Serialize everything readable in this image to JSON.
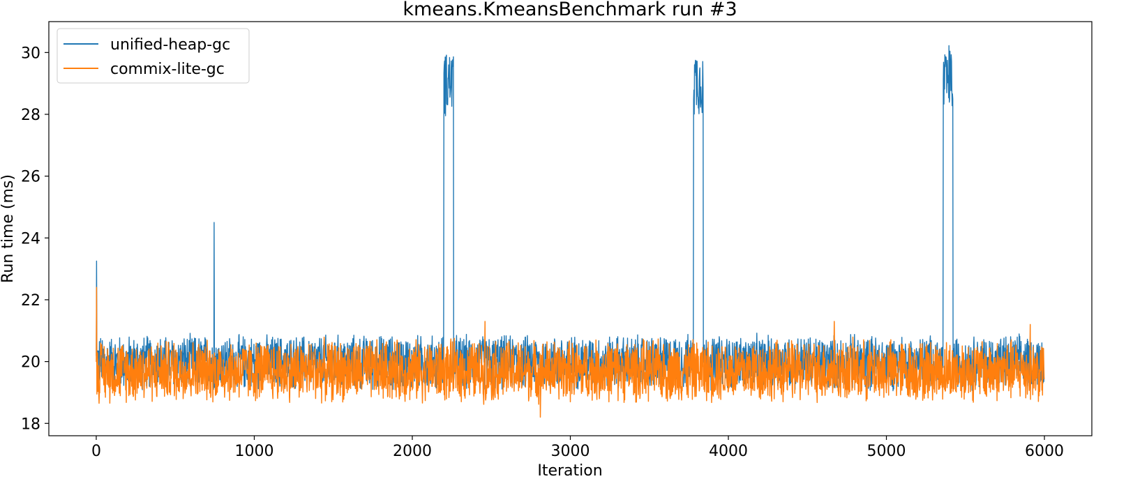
{
  "chart_data": {
    "type": "line",
    "title": "kmeans.KmeansBenchmark run #3",
    "xlabel": "Iteration",
    "ylabel": "Run time (ms)",
    "xlim": [
      -300,
      6300
    ],
    "ylim": [
      17.6,
      31.0
    ],
    "x_ticks": [
      0,
      1000,
      2000,
      3000,
      4000,
      5000,
      6000
    ],
    "y_ticks": [
      18,
      20,
      22,
      24,
      26,
      28,
      30
    ],
    "grid": false,
    "legend_position": "top-left",
    "series": [
      {
        "name": "unified-heap-gc",
        "color": "#1f77b4",
        "n_iterations": 6000,
        "typical_band": [
          19.0,
          20.95
        ],
        "plateaus": [
          {
            "x_start": 2200,
            "x_end": 2260,
            "band": [
              27.8,
              30.4
            ]
          },
          {
            "x_start": 3780,
            "x_end": 3840,
            "band": [
              27.8,
              30.4
            ]
          },
          {
            "x_start": 5360,
            "x_end": 5420,
            "band": [
              27.8,
              30.4
            ]
          }
        ],
        "spikes": [
          {
            "x": 1,
            "y": 23.25
          },
          {
            "x": 745,
            "y": 24.5
          }
        ]
      },
      {
        "name": "commix-lite-gc",
        "color": "#ff7f0e",
        "n_iterations": 6000,
        "typical_band": [
          18.6,
          20.8
        ],
        "spikes": [
          {
            "x": 2,
            "y": 22.4
          },
          {
            "x": 2460,
            "y": 21.3
          },
          {
            "x": 4670,
            "y": 21.3
          },
          {
            "x": 5910,
            "y": 21.2
          },
          {
            "x": 2810,
            "y": 18.2
          }
        ]
      }
    ]
  }
}
